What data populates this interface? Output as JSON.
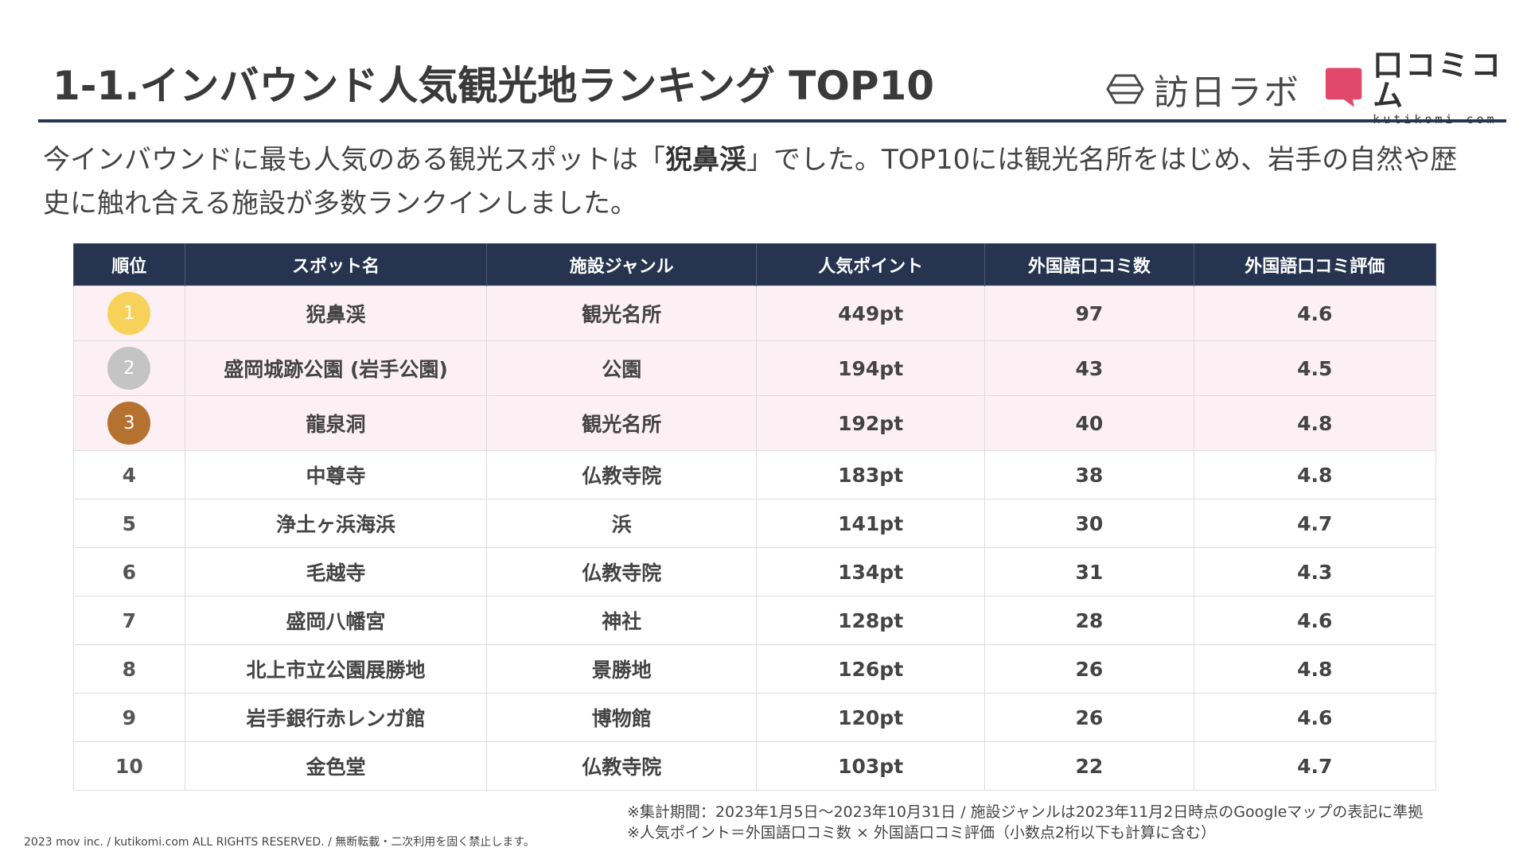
{
  "title": "1-1.インバウンド人気観光地ランキング TOP10",
  "logos": {
    "hounichi_lab": "訪日ラボ",
    "kutikomi_name": "口コミコム",
    "kutikomi_sub": "kutikomi com"
  },
  "lead": {
    "part1": "今インバウンドに最も人気のある観光スポットは「",
    "highlight": "猊鼻渓",
    "part2": "」でした。TOP10には観光名所をはじめ、岩手の自然や歴史に触れ合える施設が多数ランクインしました。"
  },
  "table": {
    "headers": [
      "順位",
      "スポット名",
      "施設ジャンル",
      "人気ポイント",
      "外国語口コミ数",
      "外国語口コミ評価"
    ],
    "rows": [
      {
        "rank": "1",
        "spot": "猊鼻渓",
        "genre": "観光名所",
        "points": "449pt",
        "reviews": "97",
        "rating": "4.6"
      },
      {
        "rank": "2",
        "spot": "盛岡城跡公園 (岩手公園)",
        "genre": "公園",
        "points": "194pt",
        "reviews": "43",
        "rating": "4.5"
      },
      {
        "rank": "3",
        "spot": "龍泉洞",
        "genre": "観光名所",
        "points": "192pt",
        "reviews": "40",
        "rating": "4.8"
      },
      {
        "rank": "4",
        "spot": "中尊寺",
        "genre": "仏教寺院",
        "points": "183pt",
        "reviews": "38",
        "rating": "4.8"
      },
      {
        "rank": "5",
        "spot": "浄土ヶ浜海浜",
        "genre": "浜",
        "points": "141pt",
        "reviews": "30",
        "rating": "4.7"
      },
      {
        "rank": "6",
        "spot": "毛越寺",
        "genre": "仏教寺院",
        "points": "134pt",
        "reviews": "31",
        "rating": "4.3"
      },
      {
        "rank": "7",
        "spot": "盛岡八幡宮",
        "genre": "神社",
        "points": "128pt",
        "reviews": "28",
        "rating": "4.6"
      },
      {
        "rank": "8",
        "spot": "北上市立公園展勝地",
        "genre": "景勝地",
        "points": "126pt",
        "reviews": "26",
        "rating": "4.8"
      },
      {
        "rank": "9",
        "spot": "岩手銀行赤レンガ館",
        "genre": "博物館",
        "points": "120pt",
        "reviews": "26",
        "rating": "4.6"
      },
      {
        "rank": "10",
        "spot": "金色堂",
        "genre": "仏教寺院",
        "points": "103pt",
        "reviews": "22",
        "rating": "4.7"
      }
    ]
  },
  "medal_colors": [
    "#f7d25b",
    "#c4c4c4",
    "#b5712f"
  ],
  "footnotes": [
    "※集計期間：2023年1月5日〜2023年10月31日 / 施設ジャンルは2023年11月2日時点のGoogleマップの表記に準拠",
    "※人気ポイント＝外国語口コミ数 × 外国語口コミ評価（小数点2桁以下も計算に含む）"
  ],
  "copyright": "2023 mov inc. / kutikomi.com ALL RIGHTS RESERVED. / 無断転載・二次利用を固く禁止します。"
}
